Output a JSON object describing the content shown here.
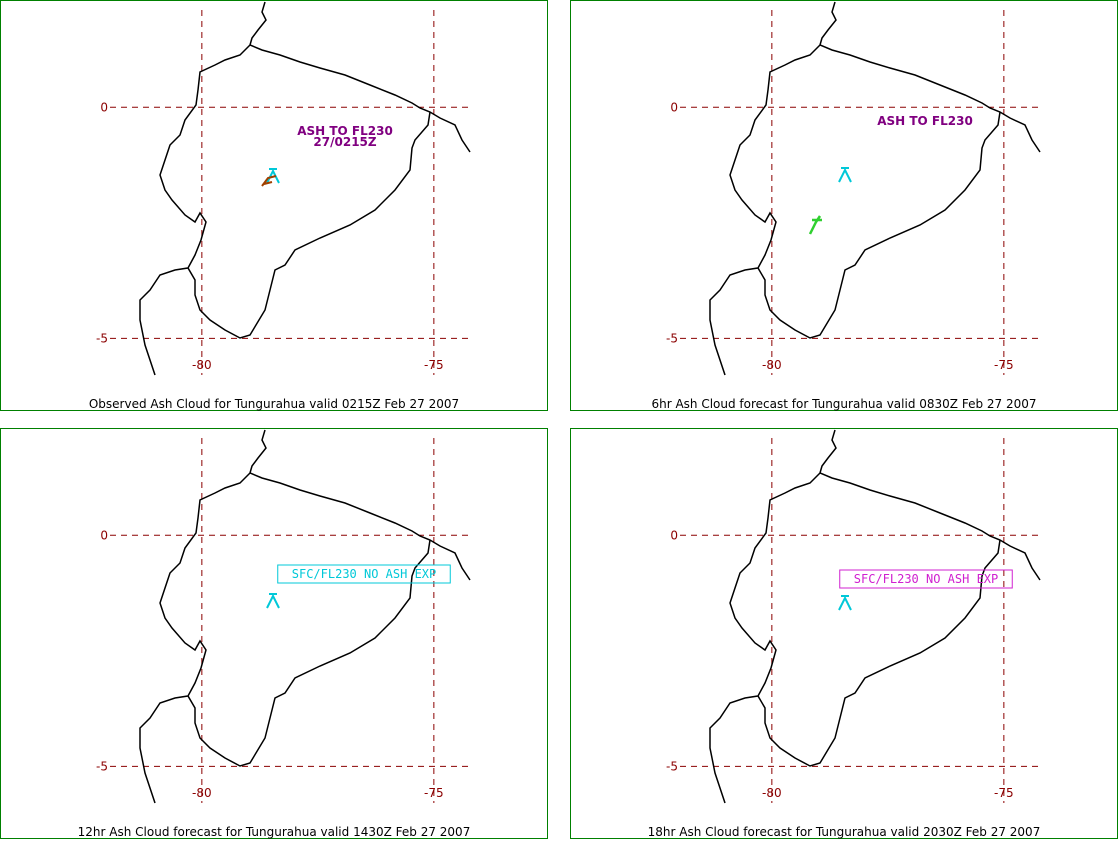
{
  "map": {
    "xlim": [
      -84.35,
      -72.54
    ],
    "ylim": [
      -5.9,
      2.32
    ],
    "lon_ticks": [
      -80,
      -75
    ],
    "lat_ticks": [
      0,
      -5
    ],
    "grid_color": "#8b0000",
    "coast_color": "#000000"
  },
  "panels": [
    {
      "caption": "Observed Ash Cloud for Tungurahua valid 0215Z Feb 27 2007",
      "annotations": [
        {
          "lines": [
            "ASH TO FL230",
            "27/0215Z"
          ],
          "color": "#800080",
          "boxed": false
        }
      ]
    },
    {
      "caption": "6hr Ash Cloud forecast for Tungurahua valid 0830Z Feb 27 2007",
      "annotations": [
        {
          "lines": [
            "ASH TO FL230"
          ],
          "color": "#800080",
          "boxed": false
        }
      ]
    },
    {
      "caption": "12hr Ash Cloud forecast for Tungurahua valid 1430Z Feb 27 2007",
      "annotations": [
        {
          "lines": [
            "SFC/FL230 NO ASH EXP"
          ],
          "color": "#00c8d8",
          "boxed": true
        }
      ]
    },
    {
      "caption": "18hr Ash Cloud forecast for Tungurahua valid 2030Z Feb 27 2007",
      "annotations": [
        {
          "lines": [
            "SFC/FL230 NO ASH EXP"
          ],
          "color": "#d020d0",
          "boxed": true
        }
      ]
    }
  ]
}
